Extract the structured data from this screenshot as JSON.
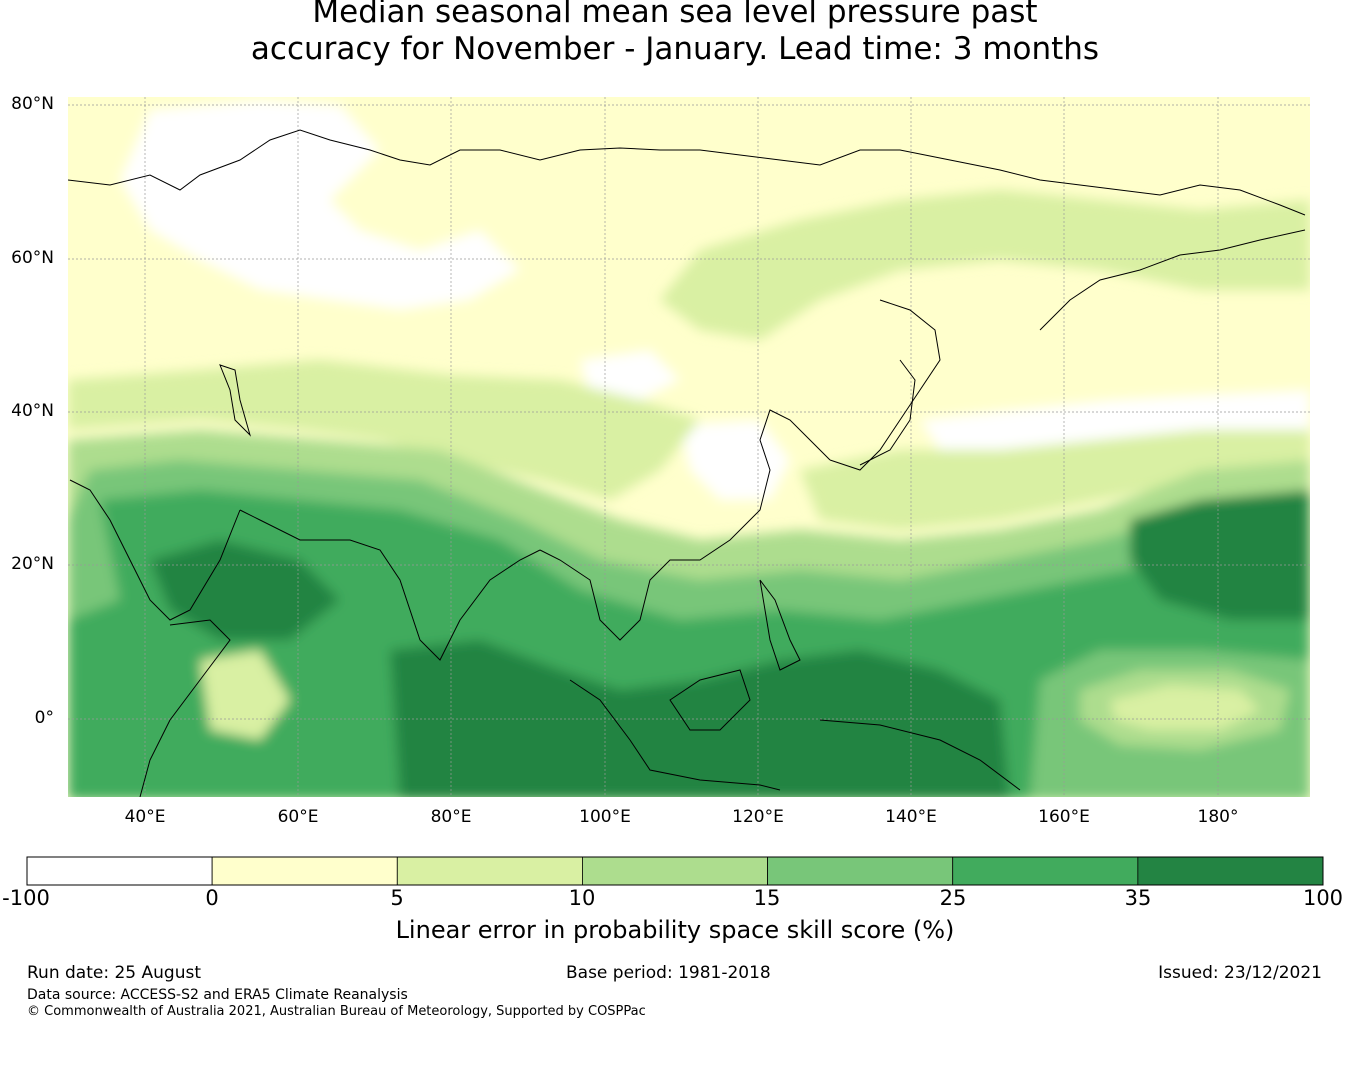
{
  "title_lines": [
    "Median seasonal mean sea level pressure past",
    "accuracy for November - January. Lead time: 3 months"
  ],
  "map": {
    "lat_labels": [
      "80°N",
      "60°N",
      "40°N",
      "20°N",
      "0°"
    ],
    "lon_labels": [
      "40°E",
      "60°E",
      "80°E",
      "100°E",
      "120°E",
      "140°E",
      "160°E",
      "180°"
    ],
    "lon_range": [
      30,
      192
    ],
    "lat_range": [
      -10,
      81
    ],
    "gridlines": true
  },
  "colorbar": {
    "ticks": [
      "-100",
      "0",
      "5",
      "10",
      "15",
      "25",
      "35",
      "100"
    ],
    "colors": [
      "#ffffff",
      "#ffffcc",
      "#d9f0a3",
      "#addd8e",
      "#78c679",
      "#41ab5d",
      "#238443"
    ],
    "label": "Linear error in probability space skill score (%)"
  },
  "footer": {
    "run_date": "Run date: 25 August",
    "base_period": "Base period: 1981-2018",
    "issued": "Issued: 23/12/2021",
    "source": "Data source: ACCESS-S2 and ERA5 Climate Reanalysis",
    "copyright": "© Commonwealth of Australia 2021, Australian Bureau of Meteorology, Supported by COSPPac"
  }
}
